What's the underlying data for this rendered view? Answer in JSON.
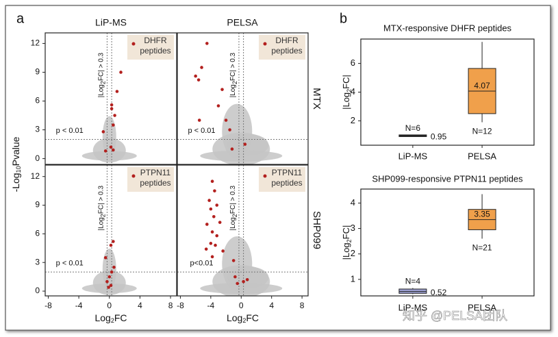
{
  "panel_labels": [
    "a",
    "b"
  ],
  "column_titles": [
    "LiP-MS",
    "PELSA"
  ],
  "row_titles": [
    "MTX",
    "SHP099"
  ],
  "y_label": [
    "-Log",
    "10",
    "Pvalue"
  ],
  "watermark": "知乎 @PELSA团队",
  "chart_data": [
    {
      "type": "scatter",
      "series": [
        {
          "name": "DHFR peptides",
          "color": "#b3201e",
          "x": [
            1.5,
            1,
            0.3,
            0.3,
            0.7,
            0.5,
            -0.8,
            0.2,
            0.5,
            -0.5
          ],
          "values": [
            9,
            7,
            5.6,
            5.2,
            4.5,
            3.5,
            2.8,
            1.2,
            0.9,
            0.8
          ]
        }
      ],
      "xlim": [
        -8.4,
        8.8
      ],
      "ylim": [
        -0.6,
        13.1
      ],
      "yticks": [
        0,
        3,
        6,
        9,
        12
      ],
      "threshold_y": 2,
      "threshold_x": [
        -0.3,
        0.3
      ],
      "annotations": {
        "p_text": "p < 0.01",
        "fc_text": [
          "|Log",
          "2",
          "FC| > 0.3"
        ]
      }
    },
    {
      "type": "scatter",
      "series": [
        {
          "name": "DHFR peptides",
          "color": "#b3201e",
          "x": [
            -4.5,
            -5.2,
            -6,
            -5.6,
            -2.5,
            -3,
            -5.5,
            -2,
            -1.5,
            0.5,
            -1.2
          ],
          "values": [
            12,
            9.5,
            8.6,
            8.2,
            7.2,
            5.5,
            4,
            4,
            3,
            1.5,
            1
          ]
        }
      ],
      "xlim": [
        -8.4,
        8.8
      ],
      "ylim": [
        -0.6,
        13.1
      ],
      "threshold_y": 2,
      "threshold_x": [
        -0.3,
        0.3
      ],
      "annotations": {
        "p_text": "p < 0.01",
        "fc_text": [
          "|Log",
          "2",
          "FC| > 0.3"
        ]
      }
    },
    {
      "type": "scatter",
      "series": [
        {
          "name": "PTPN11 peptides",
          "color": "#b3201e",
          "x": [
            0.5,
            0.2,
            -0.5,
            0.6,
            0.3,
            0,
            -0.3,
            0.2,
            -0.1
          ],
          "values": [
            5.2,
            4.8,
            3.5,
            2.5,
            2,
            1.5,
            1,
            0.6,
            0.4
          ]
        }
      ],
      "xlim": [
        -8.4,
        8.8
      ],
      "ylim": [
        -0.5,
        13.2
      ],
      "yticks": [
        0,
        3,
        6,
        9,
        12
      ],
      "xticks": [
        -8,
        -4,
        0,
        4,
        8
      ],
      "x_label": [
        "Log",
        "2",
        "FC"
      ],
      "threshold_y": 2,
      "threshold_x": [
        -0.3,
        0.3
      ],
      "annotations": {
        "p_text": "p < 0.01",
        "fc_text": [
          "|Log",
          "2",
          "FC| > 0.3"
        ]
      }
    },
    {
      "type": "scatter",
      "series": [
        {
          "name": "PTPN11 peptides",
          "color": "#b3201e",
          "x": [
            -3.8,
            -3.5,
            -4.2,
            -3.2,
            -4,
            -3.6,
            -4.5,
            -2.8,
            -3.8,
            -3.2,
            -4,
            -4.6,
            -3.4,
            -2.4,
            -3.8,
            -1,
            -0.8,
            0.3,
            -0.5,
            0.8
          ],
          "values": [
            11.5,
            10.5,
            9.5,
            9,
            8.6,
            7.8,
            7,
            7.2,
            6.2,
            5.8,
            5,
            4.4,
            4.8,
            4.2,
            3.6,
            3.2,
            1.5,
            1,
            0.8,
            1.2
          ]
        }
      ],
      "xlim": [
        -8.4,
        8.8
      ],
      "ylim": [
        -0.5,
        13.2
      ],
      "xticks": [
        -8,
        -4,
        0,
        4,
        8
      ],
      "x_label": [
        "Log",
        "2",
        "FC"
      ],
      "threshold_y": 2,
      "threshold_x": [
        -0.3,
        0.3
      ],
      "annotations": {
        "p_text": "p<0.01",
        "fc_text": [
          "|Log",
          "2",
          "FC| > 0.3"
        ]
      }
    },
    {
      "type": "box",
      "title": "MTX-responsive DHFR peptides",
      "y_label": [
        "|Log",
        "2",
        "FC|"
      ],
      "categories": [
        "LiP-MS",
        "PELSA"
      ],
      "ylim": [
        0.3,
        7.7
      ],
      "yticks": [
        2,
        4,
        6
      ],
      "boxes": [
        {
          "whislo": 0.9,
          "q1": 0.9,
          "med": 0.95,
          "q3": 1.02,
          "whishi": 1.02,
          "n_label": "N=6",
          "color": "#262626"
        },
        {
          "whislo": 1.9,
          "q1": 2.5,
          "med": 4.07,
          "q3": 5.65,
          "whishi": 7.5,
          "n_label": "N=12",
          "color": "#f0a04b"
        }
      ]
    },
    {
      "type": "box",
      "title": "SHP099-responsive PTPN11 peptides",
      "y_label": [
        "|Log",
        "2",
        "FC|"
      ],
      "categories": [
        "LiP-MS",
        "PELSA"
      ],
      "ylim": [
        0.35,
        4.55
      ],
      "yticks": [
        1,
        2,
        3,
        4
      ],
      "boxes": [
        {
          "whislo": 0.42,
          "q1": 0.45,
          "med": 0.52,
          "q3": 0.62,
          "whishi": 0.66,
          "n_label": "N=4",
          "color": "#9c9fd0"
        },
        {
          "whislo": 2.6,
          "q1": 2.95,
          "med": 3.35,
          "q3": 3.75,
          "whishi": 4.35,
          "n_label": "N=21",
          "color": "#f0a04b"
        }
      ]
    }
  ]
}
